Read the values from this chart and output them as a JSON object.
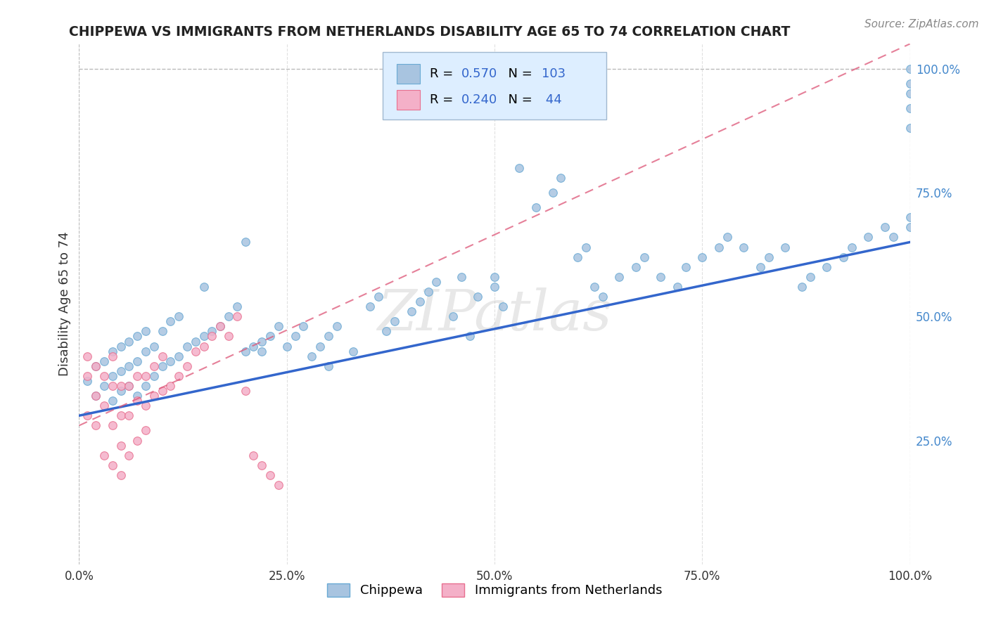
{
  "title": "CHIPPEWA VS IMMIGRANTS FROM NETHERLANDS DISABILITY AGE 65 TO 74 CORRELATION CHART",
  "source_text": "Source: ZipAtlas.com",
  "xlabel": "",
  "ylabel": "Disability Age 65 to 74",
  "watermark": "ZIPatlas",
  "xlim": [
    0.0,
    1.0
  ],
  "ylim": [
    0.0,
    1.05
  ],
  "xticks": [
    0.0,
    0.25,
    0.5,
    0.75,
    1.0
  ],
  "xticklabels": [
    "0.0%",
    "25.0%",
    "50.0%",
    "75.0%",
    "100.0%"
  ],
  "yticks_right": [
    0.25,
    0.5,
    0.75,
    1.0
  ],
  "yticklabels_right": [
    "25.0%",
    "50.0%",
    "75.0%",
    "100.0%"
  ],
  "chippewa_color": "#a8c4e0",
  "chippewa_edge_color": "#6aaad4",
  "netherlands_color": "#f4b0c8",
  "netherlands_edge_color": "#e87090",
  "trend_blue": "#3366cc",
  "trend_pink": "#dd5577",
  "R_chippewa": 0.57,
  "N_chippewa": 103,
  "R_netherlands": 0.24,
  "N_netherlands": 44,
  "legend_box_color": "#ddeeff",
  "legend_border_color": "#a0b8d0",
  "background_color": "#ffffff",
  "grid_color": "#cccccc",
  "chippewa_x": [
    0.01,
    0.02,
    0.02,
    0.03,
    0.03,
    0.04,
    0.04,
    0.04,
    0.05,
    0.05,
    0.05,
    0.06,
    0.06,
    0.06,
    0.07,
    0.07,
    0.07,
    0.08,
    0.08,
    0.08,
    0.09,
    0.09,
    0.1,
    0.1,
    0.11,
    0.11,
    0.12,
    0.12,
    0.13,
    0.14,
    0.15,
    0.15,
    0.16,
    0.17,
    0.18,
    0.19,
    0.2,
    0.21,
    0.22,
    0.23,
    0.24,
    0.25,
    0.26,
    0.27,
    0.28,
    0.29,
    0.3,
    0.31,
    0.33,
    0.35,
    0.36,
    0.37,
    0.38,
    0.4,
    0.41,
    0.42,
    0.43,
    0.45,
    0.46,
    0.47,
    0.48,
    0.5,
    0.5,
    0.51,
    0.53,
    0.55,
    0.57,
    0.58,
    0.6,
    0.61,
    0.62,
    0.63,
    0.65,
    0.67,
    0.68,
    0.7,
    0.72,
    0.73,
    0.75,
    0.77,
    0.78,
    0.8,
    0.82,
    0.83,
    0.85,
    0.87,
    0.88,
    0.9,
    0.92,
    0.93,
    0.95,
    0.97,
    0.98,
    1.0,
    1.0,
    1.0,
    1.0,
    1.0,
    1.0,
    1.0,
    0.2,
    0.22,
    0.3
  ],
  "chippewa_y": [
    0.37,
    0.34,
    0.4,
    0.36,
    0.41,
    0.33,
    0.38,
    0.43,
    0.35,
    0.39,
    0.44,
    0.36,
    0.4,
    0.45,
    0.34,
    0.41,
    0.46,
    0.36,
    0.43,
    0.47,
    0.38,
    0.44,
    0.4,
    0.47,
    0.41,
    0.49,
    0.42,
    0.5,
    0.44,
    0.45,
    0.46,
    0.56,
    0.47,
    0.48,
    0.5,
    0.52,
    0.43,
    0.44,
    0.45,
    0.46,
    0.48,
    0.44,
    0.46,
    0.48,
    0.42,
    0.44,
    0.46,
    0.48,
    0.43,
    0.52,
    0.54,
    0.47,
    0.49,
    0.51,
    0.53,
    0.55,
    0.57,
    0.5,
    0.58,
    0.46,
    0.54,
    0.56,
    0.58,
    0.52,
    0.8,
    0.72,
    0.75,
    0.78,
    0.62,
    0.64,
    0.56,
    0.54,
    0.58,
    0.6,
    0.62,
    0.58,
    0.56,
    0.6,
    0.62,
    0.64,
    0.66,
    0.64,
    0.6,
    0.62,
    0.64,
    0.56,
    0.58,
    0.6,
    0.62,
    0.64,
    0.66,
    0.68,
    0.66,
    1.0,
    0.97,
    0.92,
    0.95,
    0.88,
    0.7,
    0.68,
    0.65,
    0.43,
    0.4
  ],
  "netherlands_x": [
    0.01,
    0.01,
    0.01,
    0.02,
    0.02,
    0.02,
    0.03,
    0.03,
    0.03,
    0.04,
    0.04,
    0.04,
    0.04,
    0.05,
    0.05,
    0.05,
    0.05,
    0.06,
    0.06,
    0.06,
    0.07,
    0.07,
    0.07,
    0.08,
    0.08,
    0.08,
    0.09,
    0.09,
    0.1,
    0.1,
    0.11,
    0.12,
    0.13,
    0.14,
    0.15,
    0.16,
    0.17,
    0.18,
    0.19,
    0.2,
    0.21,
    0.22,
    0.23,
    0.24
  ],
  "netherlands_y": [
    0.38,
    0.42,
    0.3,
    0.34,
    0.4,
    0.28,
    0.32,
    0.38,
    0.22,
    0.36,
    0.42,
    0.28,
    0.2,
    0.3,
    0.36,
    0.24,
    0.18,
    0.3,
    0.36,
    0.22,
    0.33,
    0.38,
    0.25,
    0.32,
    0.38,
    0.27,
    0.34,
    0.4,
    0.35,
    0.42,
    0.36,
    0.38,
    0.4,
    0.43,
    0.44,
    0.46,
    0.48,
    0.46,
    0.5,
    0.35,
    0.22,
    0.2,
    0.18,
    0.16
  ],
  "trend_blue_x0": 0.0,
  "trend_blue_y0": 0.3,
  "trend_blue_x1": 1.0,
  "trend_blue_y1": 0.65,
  "trend_pink_x0": 0.0,
  "trend_pink_y0": 0.28,
  "trend_pink_x1": 1.0,
  "trend_pink_y1": 1.05
}
